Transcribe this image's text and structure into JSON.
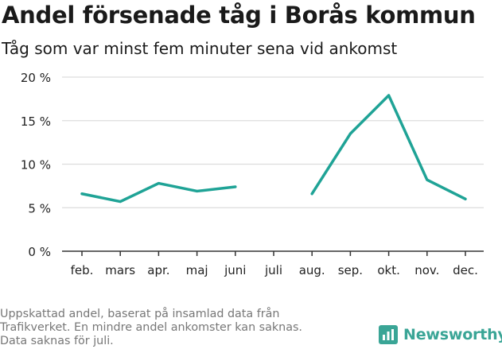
{
  "title": "Andel försenade tåg i Borås kommun",
  "subtitle": "Tåg som var minst fem minuter sena vid ankomst",
  "note_lines": [
    "Uppskattad andel, baserat på insamlad data från",
    "Trafikverket. En mindre andel ankomster kan saknas.",
    "Data saknas för juli."
  ],
  "brand": {
    "name": "Newsworthy",
    "color": "#3aa596",
    "icon": "bar-chart-logo-icon"
  },
  "chart_data": {
    "type": "line",
    "categories": [
      "feb.",
      "mars",
      "apr.",
      "maj",
      "juni",
      "juli",
      "aug.",
      "sep.",
      "okt.",
      "nov.",
      "dec."
    ],
    "series": [
      {
        "values": [
          6.6,
          5.7,
          7.8,
          6.9,
          7.4,
          null,
          6.6,
          13.5,
          17.9,
          8.2,
          6.0
        ]
      }
    ],
    "y_ticks": [
      0,
      5,
      10,
      15,
      20
    ],
    "y_tick_labels": [
      "0 %",
      "5 %",
      "10 %",
      "15 %",
      "20 %"
    ],
    "ylim": [
      0,
      20
    ],
    "grid": true,
    "line_color": "#1fa396",
    "grid_color": "#dddddd",
    "axis_color": "#333333"
  }
}
